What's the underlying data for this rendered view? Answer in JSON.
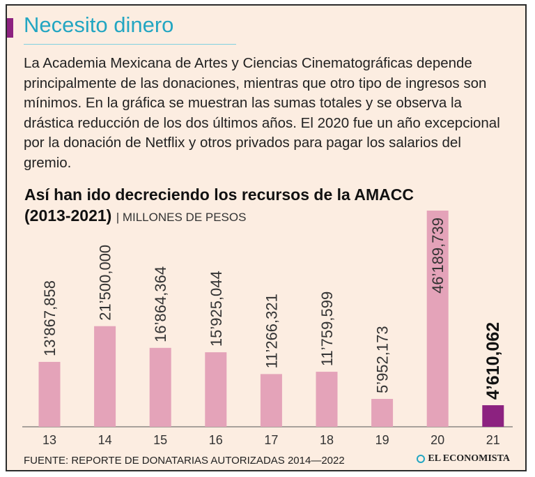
{
  "header": {
    "title": "Necesito dinero",
    "intro": "La Academia Mexicana de Artes y Ciencias Cinematográficas depende principalmente de las donaciones, mientras que otro tipo de ingresos son mínimos. En la gráfica se muestran las sumas totales y se observa la drástica reducción de los dos últimos años. El 2020 fue un año excepcional por la donación de Netflix y otros privados para pagar los salarios del gremio."
  },
  "footer": {
    "source": "FUENTE: REPORTE DE DONATARIAS AUTORIZADAS 2014—2022",
    "brand": "EL ECONOMISTA"
  },
  "colors": {
    "accent": "#8c2280",
    "heading": "#23a6c2",
    "bar": "#e4a3b9",
    "bar_highlight": "#8c2280",
    "background": "#fcede1"
  },
  "chart_data": {
    "type": "bar",
    "title": "Así han ido decreciendo los recursos de la AMACC (2013-2021)",
    "unit": "| MILLONES DE PESOS",
    "categories": [
      "13",
      "14",
      "15",
      "16",
      "17",
      "18",
      "19",
      "20",
      "21"
    ],
    "values": [
      13867858,
      21500000,
      16864364,
      15925044,
      11266321,
      11759599,
      5952173,
      46189739,
      4610062
    ],
    "labels": [
      "13’867,858",
      "21’500,000",
      "16’864,364",
      "15’925,044",
      "11’266,321",
      "11’759,599",
      "5’952,173",
      "46’189,739",
      "4’610,062"
    ],
    "highlight_index": 8,
    "ylim": [
      0,
      46189739
    ],
    "grid": false,
    "legend": "none"
  }
}
